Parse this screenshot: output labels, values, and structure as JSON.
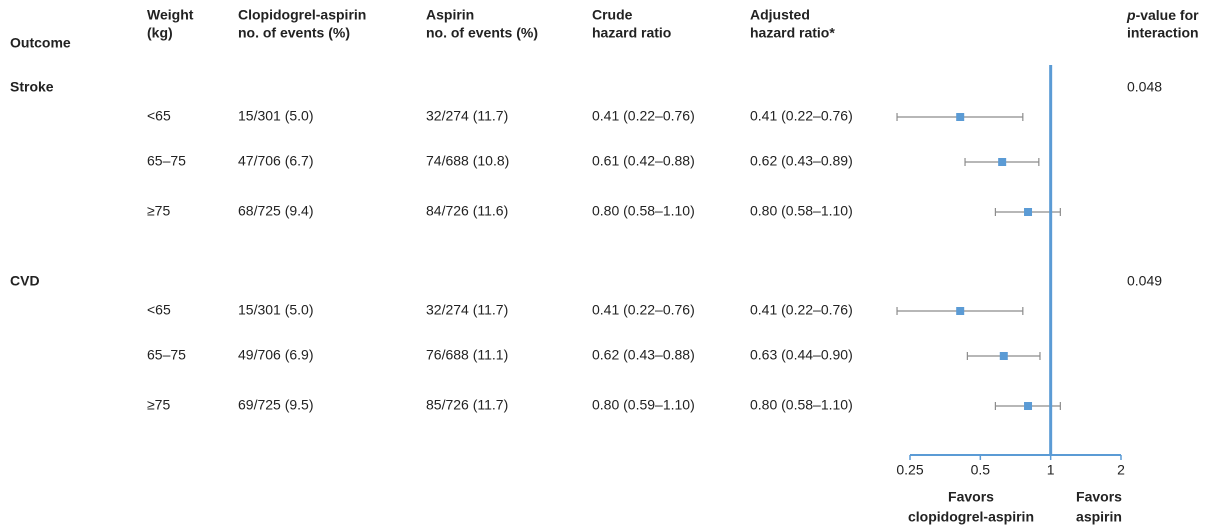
{
  "chart_data": {
    "type": "forest",
    "columns": [
      [
        "Outcome"
      ],
      [
        "Weight",
        "(kg)"
      ],
      [
        "Clopidogrel-aspirin",
        "no. of events (%)"
      ],
      [
        "Aspirin",
        "no. of events (%)"
      ],
      [
        "Crude",
        "hazard ratio"
      ],
      [
        "Adjusted",
        "hazard ratio*"
      ]
    ],
    "p_header": {
      "italic": "p",
      "rest": "-value for",
      "line2": "interaction"
    },
    "groups": [
      {
        "name": "Stroke",
        "p_value": 0.048,
        "rows": [
          {
            "weight": "<65",
            "clop": "15/301 (5.0)",
            "asp": "32/274 (11.7)",
            "crude": "0.41 (0.22–0.76)",
            "value_label": "0.41 (0.22–0.76)",
            "hr": 0.41,
            "lo": 0.22,
            "hi": 0.76
          },
          {
            "weight": "65–75",
            "clop": "47/706 (6.7)",
            "asp": "74/688 (10.8)",
            "crude": "0.61 (0.42–0.88)",
            "value_label": "0.62 (0.43–0.89)",
            "hr": 0.62,
            "lo": 0.43,
            "hi": 0.89
          },
          {
            "weight": "≥75",
            "clop": "68/725 (9.4)",
            "asp": "84/726 (11.6)",
            "crude": "0.80 (0.58–1.10)",
            "value_label": "0.80 (0.58–1.10)",
            "hr": 0.8,
            "lo": 0.58,
            "hi": 1.1
          }
        ]
      },
      {
        "name": "CVD",
        "p_value": 0.049,
        "rows": [
          {
            "weight": "<65",
            "clop": "15/301 (5.0)",
            "asp": "32/274 (11.7)",
            "crude": "0.41 (0.22–0.76)",
            "value_label": "0.41 (0.22–0.76)",
            "hr": 0.41,
            "lo": 0.22,
            "hi": 0.76
          },
          {
            "weight": "65–75",
            "clop": "49/706 (6.9)",
            "asp": "76/688 (11.1)",
            "crude": "0.62 (0.43–0.88)",
            "value_label": "0.63 (0.44–0.90)",
            "hr": 0.63,
            "lo": 0.44,
            "hi": 0.9
          },
          {
            "weight": "≥75",
            "clop": "69/725 (9.5)",
            "asp": "85/726 (11.7)",
            "crude": "0.80 (0.59–1.10)",
            "value_label": "0.80 (0.58–1.10)",
            "hr": 0.8,
            "lo": 0.58,
            "hi": 1.1
          }
        ]
      }
    ],
    "xlim": [
      0.25,
      2
    ],
    "xticks": [
      0.25,
      0.5,
      1,
      2
    ],
    "log_scale": true,
    "reference": 1,
    "color": "#5b9bd5",
    "ci_color": "#8c8c8c",
    "favors_left": [
      "Favors",
      "clopidogrel-aspirin"
    ],
    "favors_right": [
      "Favors",
      "aspirin"
    ]
  }
}
